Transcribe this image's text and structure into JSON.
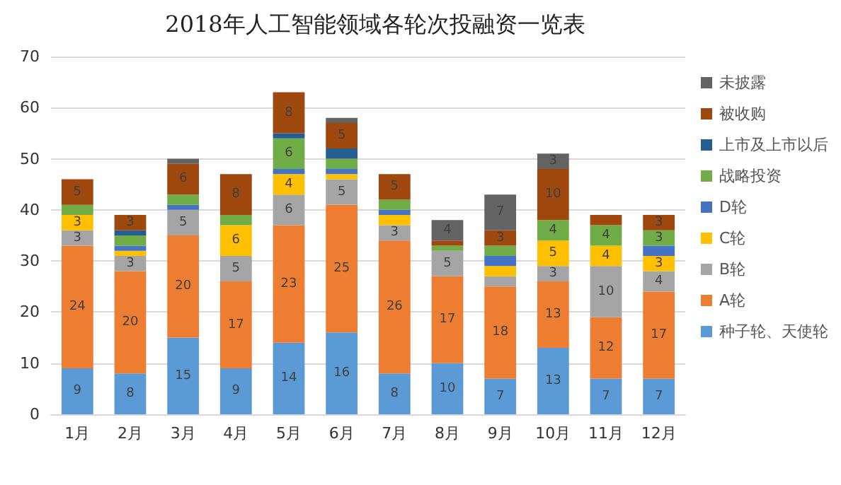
{
  "chart_data": {
    "type": "bar",
    "title": "2018年人工智能领域各轮次投融资一览表",
    "stacked": true,
    "grid": "y",
    "legend": "right",
    "categories": [
      "1月",
      "2月",
      "3月",
      "4月",
      "5月",
      "6月",
      "7月",
      "8月",
      "9月",
      "10月",
      "11月",
      "12月"
    ],
    "ylim": [
      0,
      70
    ],
    "yticks": [
      0,
      10,
      20,
      30,
      40,
      50,
      60,
      70
    ],
    "series": [
      {
        "name": "种子轮、天使轮",
        "color": "#5b9bd5",
        "values": [
          9,
          8,
          15,
          9,
          14,
          16,
          8,
          10,
          7,
          13,
          7,
          7
        ],
        "value_labels": [
          "9",
          "8",
          "15",
          "9",
          "14",
          "16",
          "8",
          "10",
          "7",
          "13",
          "7",
          "7"
        ]
      },
      {
        "name": "A轮",
        "color": "#ed7d31",
        "values": [
          24,
          20,
          20,
          17,
          23,
          25,
          26,
          17,
          18,
          13,
          12,
          17
        ],
        "value_labels": [
          "24",
          "20",
          "20",
          "17",
          "23",
          "25",
          "26",
          "17",
          "18",
          "13",
          "12",
          "17"
        ]
      },
      {
        "name": "B轮",
        "color": "#a5a5a5",
        "values": [
          3,
          3,
          5,
          5,
          6,
          5,
          3,
          5,
          2,
          3,
          10,
          4
        ],
        "value_labels": [
          "3",
          "3",
          "5",
          "5",
          "6",
          "5",
          "3",
          "5",
          null,
          "3",
          "10",
          "4"
        ]
      },
      {
        "name": "C轮",
        "color": "#ffc000",
        "values": [
          3,
          1,
          0,
          6,
          4,
          1,
          2,
          0,
          2,
          5,
          4,
          3
        ],
        "value_labels": [
          "3",
          null,
          null,
          "6",
          "4",
          null,
          null,
          null,
          null,
          "5",
          "4",
          "3"
        ]
      },
      {
        "name": "D轮",
        "color": "#4472c4",
        "values": [
          0,
          1,
          1,
          0,
          1,
          1,
          1,
          0,
          2,
          0,
          0,
          2
        ],
        "value_labels": [
          null,
          null,
          null,
          null,
          null,
          null,
          null,
          null,
          null,
          null,
          null,
          null
        ]
      },
      {
        "name": "战略投资",
        "color": "#70ad47",
        "values": [
          2,
          2,
          2,
          2,
          6,
          2,
          2,
          1,
          2,
          4,
          4,
          3
        ],
        "value_labels": [
          null,
          null,
          null,
          null,
          "6",
          null,
          null,
          null,
          null,
          "4",
          "4",
          "3"
        ]
      },
      {
        "name": "上市及上市以后",
        "color": "#255e91",
        "values": [
          0,
          1,
          0,
          0,
          1,
          2,
          0,
          0,
          0,
          0,
          0,
          0
        ],
        "value_labels": [
          null,
          null,
          null,
          null,
          null,
          null,
          null,
          null,
          null,
          null,
          null,
          null
        ]
      },
      {
        "name": "被收购",
        "color": "#9e480e",
        "values": [
          5,
          3,
          6,
          8,
          8,
          5,
          5,
          1,
          3,
          10,
          2,
          3
        ],
        "value_labels": [
          "5",
          "3",
          "6",
          "8",
          "8",
          "5",
          "5",
          null,
          "3",
          "10",
          null,
          "3"
        ]
      },
      {
        "name": "未披露",
        "color": "#636363",
        "values": [
          0,
          0,
          1,
          0,
          0,
          1,
          0,
          4,
          7,
          3,
          0,
          0
        ],
        "value_labels": [
          null,
          null,
          null,
          null,
          null,
          null,
          null,
          "4",
          "7",
          "3",
          null,
          null
        ]
      }
    ]
  }
}
